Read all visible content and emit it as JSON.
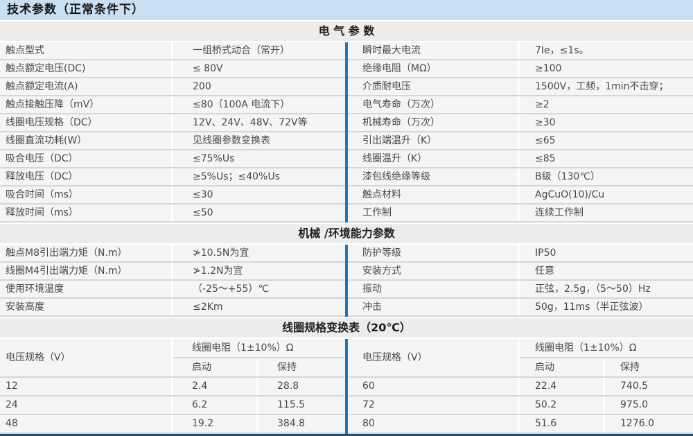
{
  "page_title": "技术参数（正常条件下）",
  "colors": {
    "title_bg": "#c9e0f2",
    "header_bg": "#ececec",
    "row_bg": "#f5f5f5",
    "sep": "#d6d6d6",
    "accent": "#1b76bc",
    "footer_line": "#1f4e79"
  },
  "sections": {
    "electrical": {
      "title": "电 气 参 数",
      "left_rows": [
        {
          "label": "触点型式",
          "value": "一组桥式动合（常开）"
        },
        {
          "label": "触点额定电压(DC)",
          "value": "≤ 80V"
        },
        {
          "label": "触点额定电流(A)",
          "value": "200"
        },
        {
          "label": "触点接触压降（mV）",
          "value": "≤80（100A 电流下）"
        },
        {
          "label": "线圈电压规格（DC）",
          "value": "12V、24V、48V、72V等"
        },
        {
          "label": "线圈直流功耗(W）",
          "value": "见线圈参数变换表"
        },
        {
          "label": "吸合电压（DC）",
          "value": "≤75%Us"
        },
        {
          "label": "释放电压（DC）",
          "value": "≥5%Us；≤40%Us"
        },
        {
          "label": "吸合时间（ms）",
          "value": "≤30"
        },
        {
          "label": "释放时间（ms）",
          "value": "≤50"
        }
      ],
      "right_rows": [
        {
          "label": "瞬时最大电流",
          "value": "7Ie，≤1s。"
        },
        {
          "label": "绝缘电阻（MΩ）",
          "value": "≥100"
        },
        {
          "label": "介质耐电压",
          "value": "1500V，工频，1min不击穿；"
        },
        {
          "label": "电气寿命（万次）",
          "value": "≥2"
        },
        {
          "label": "机械寿命（万次）",
          "value": "≥30"
        },
        {
          "label": "引出端温升（K）",
          "value": "≤65"
        },
        {
          "label": "线圈温升（K）",
          "value": "≤85"
        },
        {
          "label": "漆包线绝缘等级",
          "value": "B级（130℃）"
        },
        {
          "label": "触点材料",
          "value": "AgCuO(10)/Cu"
        },
        {
          "label": "工作制",
          "value": "连续工作制"
        }
      ]
    },
    "mechanical": {
      "title": "机械 /环境能力参数",
      "left_rows": [
        {
          "label": "触点M8引出端力矩（N.m）",
          "value": "≯10.5N为宜"
        },
        {
          "label": "线圈M4引出端力矩（N.m）",
          "value": "≯1.2N为宜"
        },
        {
          "label": "使用环境温度",
          "value": "（-25～+55）℃"
        },
        {
          "label": "安装高度",
          "value": "≤2Km"
        }
      ],
      "right_rows": [
        {
          "label": "防护等级",
          "value": "IP50"
        },
        {
          "label": "安装方式",
          "value": "任意"
        },
        {
          "label": "振动",
          "value": "正弦，2.5g，（5～50）Hz"
        },
        {
          "label": "冲击",
          "value": "50g，11ms（半正弦波）"
        }
      ]
    },
    "coil": {
      "title": "线圈规格变换表（20℃）",
      "voltage_header": "电压规格（V）",
      "resistance_header": "线圈电阻（1±10%）Ω",
      "start_header": "启动",
      "hold_header": "保持",
      "left_rows": [
        [
          "12",
          "2.4",
          "28.8"
        ],
        [
          "24",
          "6.2",
          "115.5"
        ],
        [
          "48",
          "19.2",
          "384.8"
        ]
      ],
      "right_rows": [
        [
          "60",
          "22.4",
          "740.5"
        ],
        [
          "72",
          "50.2",
          "975.0"
        ],
        [
          "80",
          "51.6",
          "1276.0"
        ]
      ]
    }
  }
}
